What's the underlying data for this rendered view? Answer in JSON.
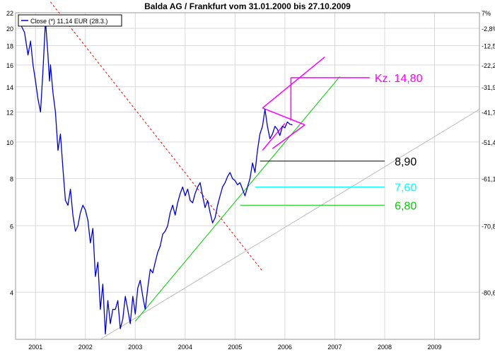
{
  "chart_data": {
    "type": "line",
    "title": "Balda AG / Frankfurt vom 31.01.2000 bis 27.10.2009",
    "legend": {
      "label": "Close (*) 11,14 EUR (28.3.)",
      "placement": "top-left"
    },
    "yscale": "log",
    "ylim": [
      3.0,
      22.0
    ],
    "xlim": [
      2000.6,
      2009.9
    ],
    "x_ticks": [
      {
        "label": "2001",
        "value": 2001
      },
      {
        "label": "2002",
        "value": 2002
      },
      {
        "label": "2003",
        "value": 2003
      },
      {
        "label": "2004",
        "value": 2004
      },
      {
        "label": "2005",
        "value": 2005
      },
      {
        "label": "2006",
        "value": 2006
      },
      {
        "label": "2007",
        "value": 2007
      },
      {
        "label": "2008",
        "value": 2008
      },
      {
        "label": "2009",
        "value": 2009
      }
    ],
    "y_ticks_left": [
      {
        "label": "4",
        "value": 4
      },
      {
        "label": "6",
        "value": 6
      },
      {
        "label": "8",
        "value": 8
      },
      {
        "label": "10",
        "value": 10
      },
      {
        "label": "12",
        "value": 12
      },
      {
        "label": "14",
        "value": 14
      },
      {
        "label": "16",
        "value": 16
      },
      {
        "label": "18",
        "value": 18
      },
      {
        "label": "20",
        "value": 20
      },
      {
        "label": "22",
        "value": 22
      }
    ],
    "y_ticks_right": [
      {
        "label": "7%",
        "value": 22.0
      },
      {
        "label": "-2,8%",
        "value": 20.0
      },
      {
        "label": "-12,5%",
        "value": 18.0
      },
      {
        "label": "-22,2%",
        "value": 16.0
      },
      {
        "label": "-31,9%",
        "value": 14.0
      },
      {
        "label": "-41,7%",
        "value": 12.0
      },
      {
        "label": "-51,4%",
        "value": 10.0
      },
      {
        "label": "-61,1%",
        "value": 8.0
      },
      {
        "label": "-70,8%",
        "value": 6.0
      },
      {
        "label": "-80,6%",
        "value": 4.0
      }
    ],
    "series": [
      {
        "color": "#0000cc",
        "x": [
          2000.7,
          2000.78,
          2000.85,
          2000.9,
          2000.95,
          2001.0,
          2001.05,
          2001.1,
          2001.15,
          2001.2,
          2001.25,
          2001.28,
          2001.3,
          2001.35,
          2001.4,
          2001.45,
          2001.5,
          2001.55,
          2001.6,
          2001.65,
          2001.7,
          2001.75,
          2001.8,
          2001.85,
          2001.9,
          2001.95,
          2002.0,
          2002.05,
          2002.1,
          2002.15,
          2002.2,
          2002.25,
          2002.3,
          2002.35,
          2002.4,
          2002.45,
          2002.5,
          2002.55,
          2002.6,
          2002.65,
          2002.7,
          2002.75,
          2002.8,
          2002.85,
          2002.9,
          2002.95,
          2003.0,
          2003.05,
          2003.1,
          2003.15,
          2003.2,
          2003.25,
          2003.3,
          2003.35,
          2003.4,
          2003.45,
          2003.5,
          2003.55,
          2003.6,
          2003.65,
          2003.7,
          2003.75,
          2003.8,
          2003.85,
          2003.9,
          2003.95,
          2004.0,
          2004.05,
          2004.1,
          2004.15,
          2004.2,
          2004.25,
          2004.3,
          2004.35,
          2004.4,
          2004.45,
          2004.5,
          2004.55,
          2004.6,
          2004.65,
          2004.7,
          2004.75,
          2004.8,
          2004.85,
          2004.9,
          2004.95,
          2005.0,
          2005.05,
          2005.1,
          2005.15,
          2005.2,
          2005.25,
          2005.3,
          2005.35,
          2005.4,
          2005.45,
          2005.5,
          2005.55,
          2005.6,
          2005.65,
          2005.7,
          2005.75,
          2005.8,
          2005.85,
          2005.9,
          2005.95,
          2006.0,
          2006.05,
          2006.1,
          2006.15
        ],
        "y": [
          20.5,
          19.5,
          17.0,
          18.5,
          16.0,
          14.5,
          13.0,
          12.0,
          15.5,
          21.0,
          17.0,
          14.5,
          16.0,
          13.5,
          12.0,
          9.5,
          10.5,
          8.5,
          7.0,
          6.8,
          7.5,
          6.4,
          5.8,
          6.0,
          6.5,
          6.8,
          6.6,
          6.2,
          5.4,
          5.9,
          4.4,
          4.8,
          3.6,
          4.2,
          3.1,
          3.8,
          3.3,
          3.6,
          3.6,
          3.8,
          3.2,
          3.4,
          3.9,
          3.6,
          3.3,
          3.9,
          3.5,
          4.1,
          4.3,
          3.9,
          3.6,
          4.1,
          4.6,
          4.5,
          4.8,
          5.1,
          5.3,
          5.7,
          5.8,
          6.0,
          6.5,
          6.8,
          6.4,
          6.9,
          7.3,
          7.6,
          7.2,
          7.5,
          7.0,
          6.9,
          7.3,
          7.6,
          7.8,
          7.2,
          6.7,
          7.0,
          6.5,
          6.1,
          6.3,
          6.8,
          7.2,
          7.6,
          7.8,
          8.1,
          8.3,
          8.0,
          7.9,
          7.7,
          7.8,
          7.5,
          7.2,
          7.6,
          8.0,
          8.8,
          8.3,
          9.5,
          10.5,
          11.0,
          12.2,
          11.0,
          10.2,
          10.5,
          11.0,
          10.8,
          10.4,
          11.0,
          10.9,
          11.3,
          11.14,
          11.1
        ]
      }
    ],
    "annotations": [
      {
        "text": "Kz. 14,80",
        "value": 14.8,
        "color": "#ff00ff"
      },
      {
        "text": "8,90",
        "value": 8.9,
        "color": "#000000"
      },
      {
        "text": "7,60",
        "value": 7.6,
        "color": "#00ffff"
      },
      {
        "text": "6,80",
        "value": 6.8,
        "color": "#00cc00"
      }
    ],
    "trend_lines": [
      {
        "name": "red-dashed-downtrend",
        "color": "#ff0000",
        "dashed": true,
        "x": [
          2001.3,
          2005.55
        ],
        "y": [
          23.5,
          4.55
        ]
      },
      {
        "name": "grey-uptrend",
        "color": "#bbbbbb",
        "dashed": false,
        "x": [
          2002.3,
          2009.9
        ],
        "y": [
          3.0,
          12.2
        ]
      },
      {
        "name": "green-uptrend",
        "color": "#00cc00",
        "dashed": false,
        "x": [
          2003.0,
          2007.1
        ],
        "y": [
          3.35,
          14.9
        ]
      },
      {
        "name": "magenta-channel-upper",
        "color": "#ff00ff",
        "dashed": false,
        "x": [
          2005.55,
          2006.8
        ],
        "y": [
          12.3,
          16.8
        ]
      },
      {
        "name": "magenta-channel-lower",
        "color": "#ff00ff",
        "dashed": false,
        "x": [
          2005.55,
          2006.0
        ],
        "y": [
          9.5,
          11.2
        ]
      },
      {
        "name": "magenta-triangle-top",
        "color": "#ff00ff",
        "dashed": false,
        "x": [
          2005.55,
          2006.4
        ],
        "y": [
          12.3,
          11.1
        ]
      },
      {
        "name": "magenta-triangle-bottom",
        "color": "#ff00ff",
        "dashed": false,
        "x": [
          2005.75,
          2006.4
        ],
        "y": [
          9.6,
          11.1
        ]
      },
      {
        "name": "magenta-target-vertical",
        "color": "#ff00ff",
        "dashed": false,
        "x": [
          2006.12,
          2006.12
        ],
        "y": [
          11.4,
          14.8
        ]
      },
      {
        "name": "magenta-target-horizontal",
        "color": "#ff00ff",
        "dashed": false,
        "x": [
          2006.12,
          2007.7
        ],
        "y": [
          14.8,
          14.8
        ]
      },
      {
        "name": "black-support",
        "color": "#000000",
        "dashed": false,
        "x": [
          2005.5,
          2008.0
        ],
        "y": [
          8.9,
          8.9
        ]
      },
      {
        "name": "cyan-support",
        "color": "#00ffff",
        "dashed": false,
        "x": [
          2005.4,
          2008.0
        ],
        "y": [
          7.6,
          7.6
        ]
      },
      {
        "name": "green-support",
        "color": "#00cc00",
        "dashed": false,
        "x": [
          2005.1,
          2008.0
        ],
        "y": [
          6.8,
          6.8
        ]
      }
    ],
    "grid": true,
    "colors": {
      "price": "#0000cc",
      "grid": "#d9d9d9",
      "axis": "#999999"
    }
  }
}
